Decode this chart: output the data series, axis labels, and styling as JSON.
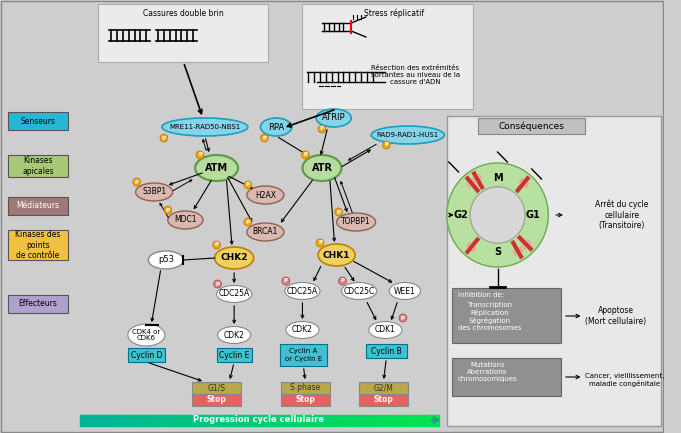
{
  "bg_color": "#cecece",
  "legend_items": [
    {
      "label": "Senseurs",
      "color": "#29b6d4",
      "text_color": "#000000"
    },
    {
      "label": "Kinases\napicales",
      "color": "#a8c87a",
      "text_color": "#000000"
    },
    {
      "label": "Médiateurs",
      "color": "#a07878",
      "text_color": "#ffffff"
    },
    {
      "label": "Kinases des\npoints\nde contrôle",
      "color": "#f0c040",
      "text_color": "#000000"
    },
    {
      "label": "Effecteurs",
      "color": "#b0a0d0",
      "text_color": "#000000"
    }
  ],
  "consequences_title": "Conséquences",
  "arret_text": "Arrêt du cycle\ncellulaire\n(Transitoire)",
  "inhibition_text": "Inhibition de:\n\nTranscription\nRéplication\nSégrégation\ndes chromosomes",
  "apoptose_text": "Apoptose\n(Mort cellulaire)",
  "mutations_text": "Mutations\nAberrations\nchromosomiques",
  "cancer_text": "Cancer, vieillissement,\nmaladie congénitale",
  "progression_text": "Progression cycle cellulaire",
  "cassures_text": "Cassures double brin",
  "stress_text": "Stress réplicatif",
  "resection_text": "Résection des extrémités\nsortantes au niveau de la\ncassure d'ADN"
}
